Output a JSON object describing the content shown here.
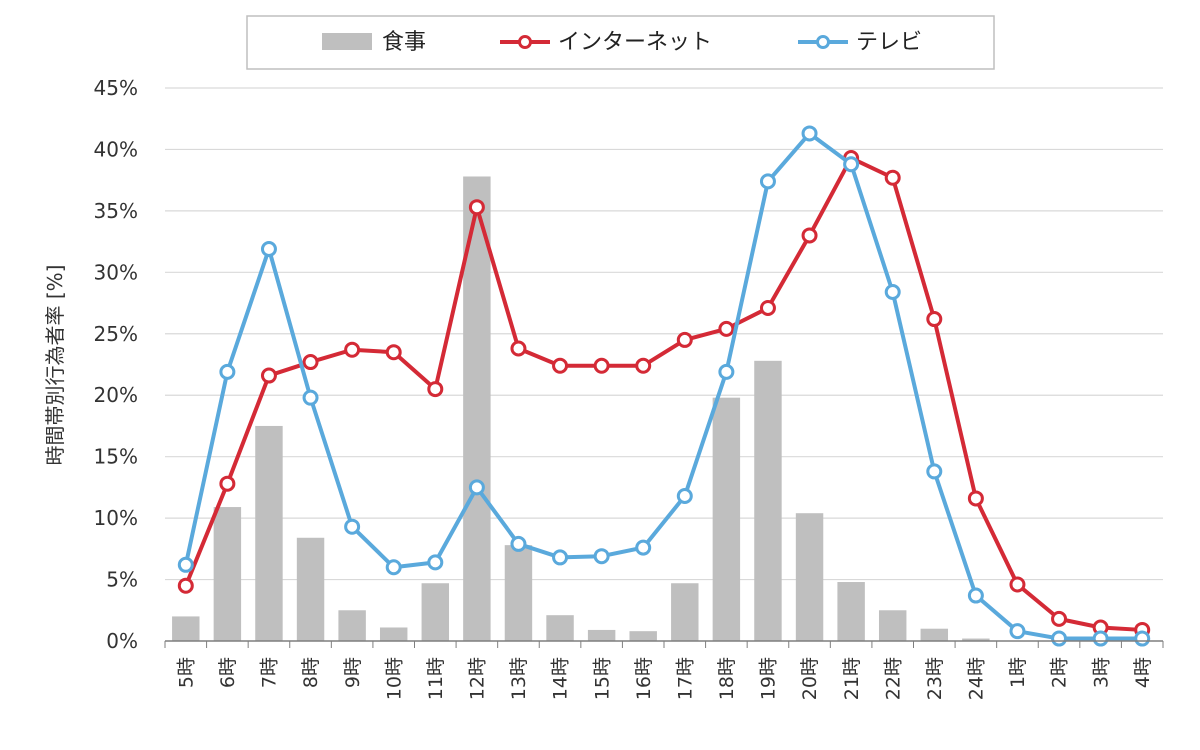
{
  "chart_data": {
    "type": "bar+line",
    "title": "",
    "xlabel": "",
    "ylabel": "時間帯別行為者率 [%]",
    "ylim": [
      0,
      45
    ],
    "yticks": [
      "0%",
      "5%",
      "10%",
      "15%",
      "20%",
      "25%",
      "30%",
      "35%",
      "40%",
      "45%"
    ],
    "categories": [
      "5時",
      "6時",
      "7時",
      "8時",
      "9時",
      "10時",
      "11時",
      "12時",
      "13時",
      "14時",
      "15時",
      "16時",
      "17時",
      "18時",
      "19時",
      "20時",
      "21時",
      "22時",
      "23時",
      "24時",
      "1時",
      "2時",
      "3時",
      "4時"
    ],
    "legend_position": "top",
    "series": [
      {
        "name": "食事",
        "kind": "bar",
        "color": "#bfbfbf",
        "values": [
          2.0,
          10.9,
          17.5,
          8.4,
          2.5,
          1.1,
          4.7,
          37.8,
          7.8,
          2.1,
          0.9,
          0.8,
          4.7,
          19.8,
          22.8,
          10.4,
          4.8,
          2.5,
          1.0,
          0.2,
          0,
          0,
          0,
          0
        ]
      },
      {
        "name": "インターネット",
        "kind": "line",
        "color": "#d42a36",
        "values": [
          4.5,
          12.8,
          21.6,
          22.7,
          23.7,
          23.5,
          20.5,
          35.3,
          23.8,
          22.4,
          22.4,
          22.4,
          24.5,
          25.4,
          27.1,
          33.0,
          39.3,
          37.7,
          26.2,
          11.6,
          4.6,
          1.8,
          1.1,
          0.9
        ]
      },
      {
        "name": "テレビ",
        "kind": "line",
        "color": "#5aa9dc",
        "values": [
          6.2,
          21.9,
          31.9,
          19.8,
          9.3,
          6.0,
          6.4,
          12.5,
          7.9,
          6.8,
          6.9,
          7.6,
          11.8,
          21.9,
          37.4,
          41.3,
          38.8,
          28.4,
          13.8,
          3.7,
          0.8,
          0.2,
          0.2,
          0.2
        ]
      }
    ]
  }
}
